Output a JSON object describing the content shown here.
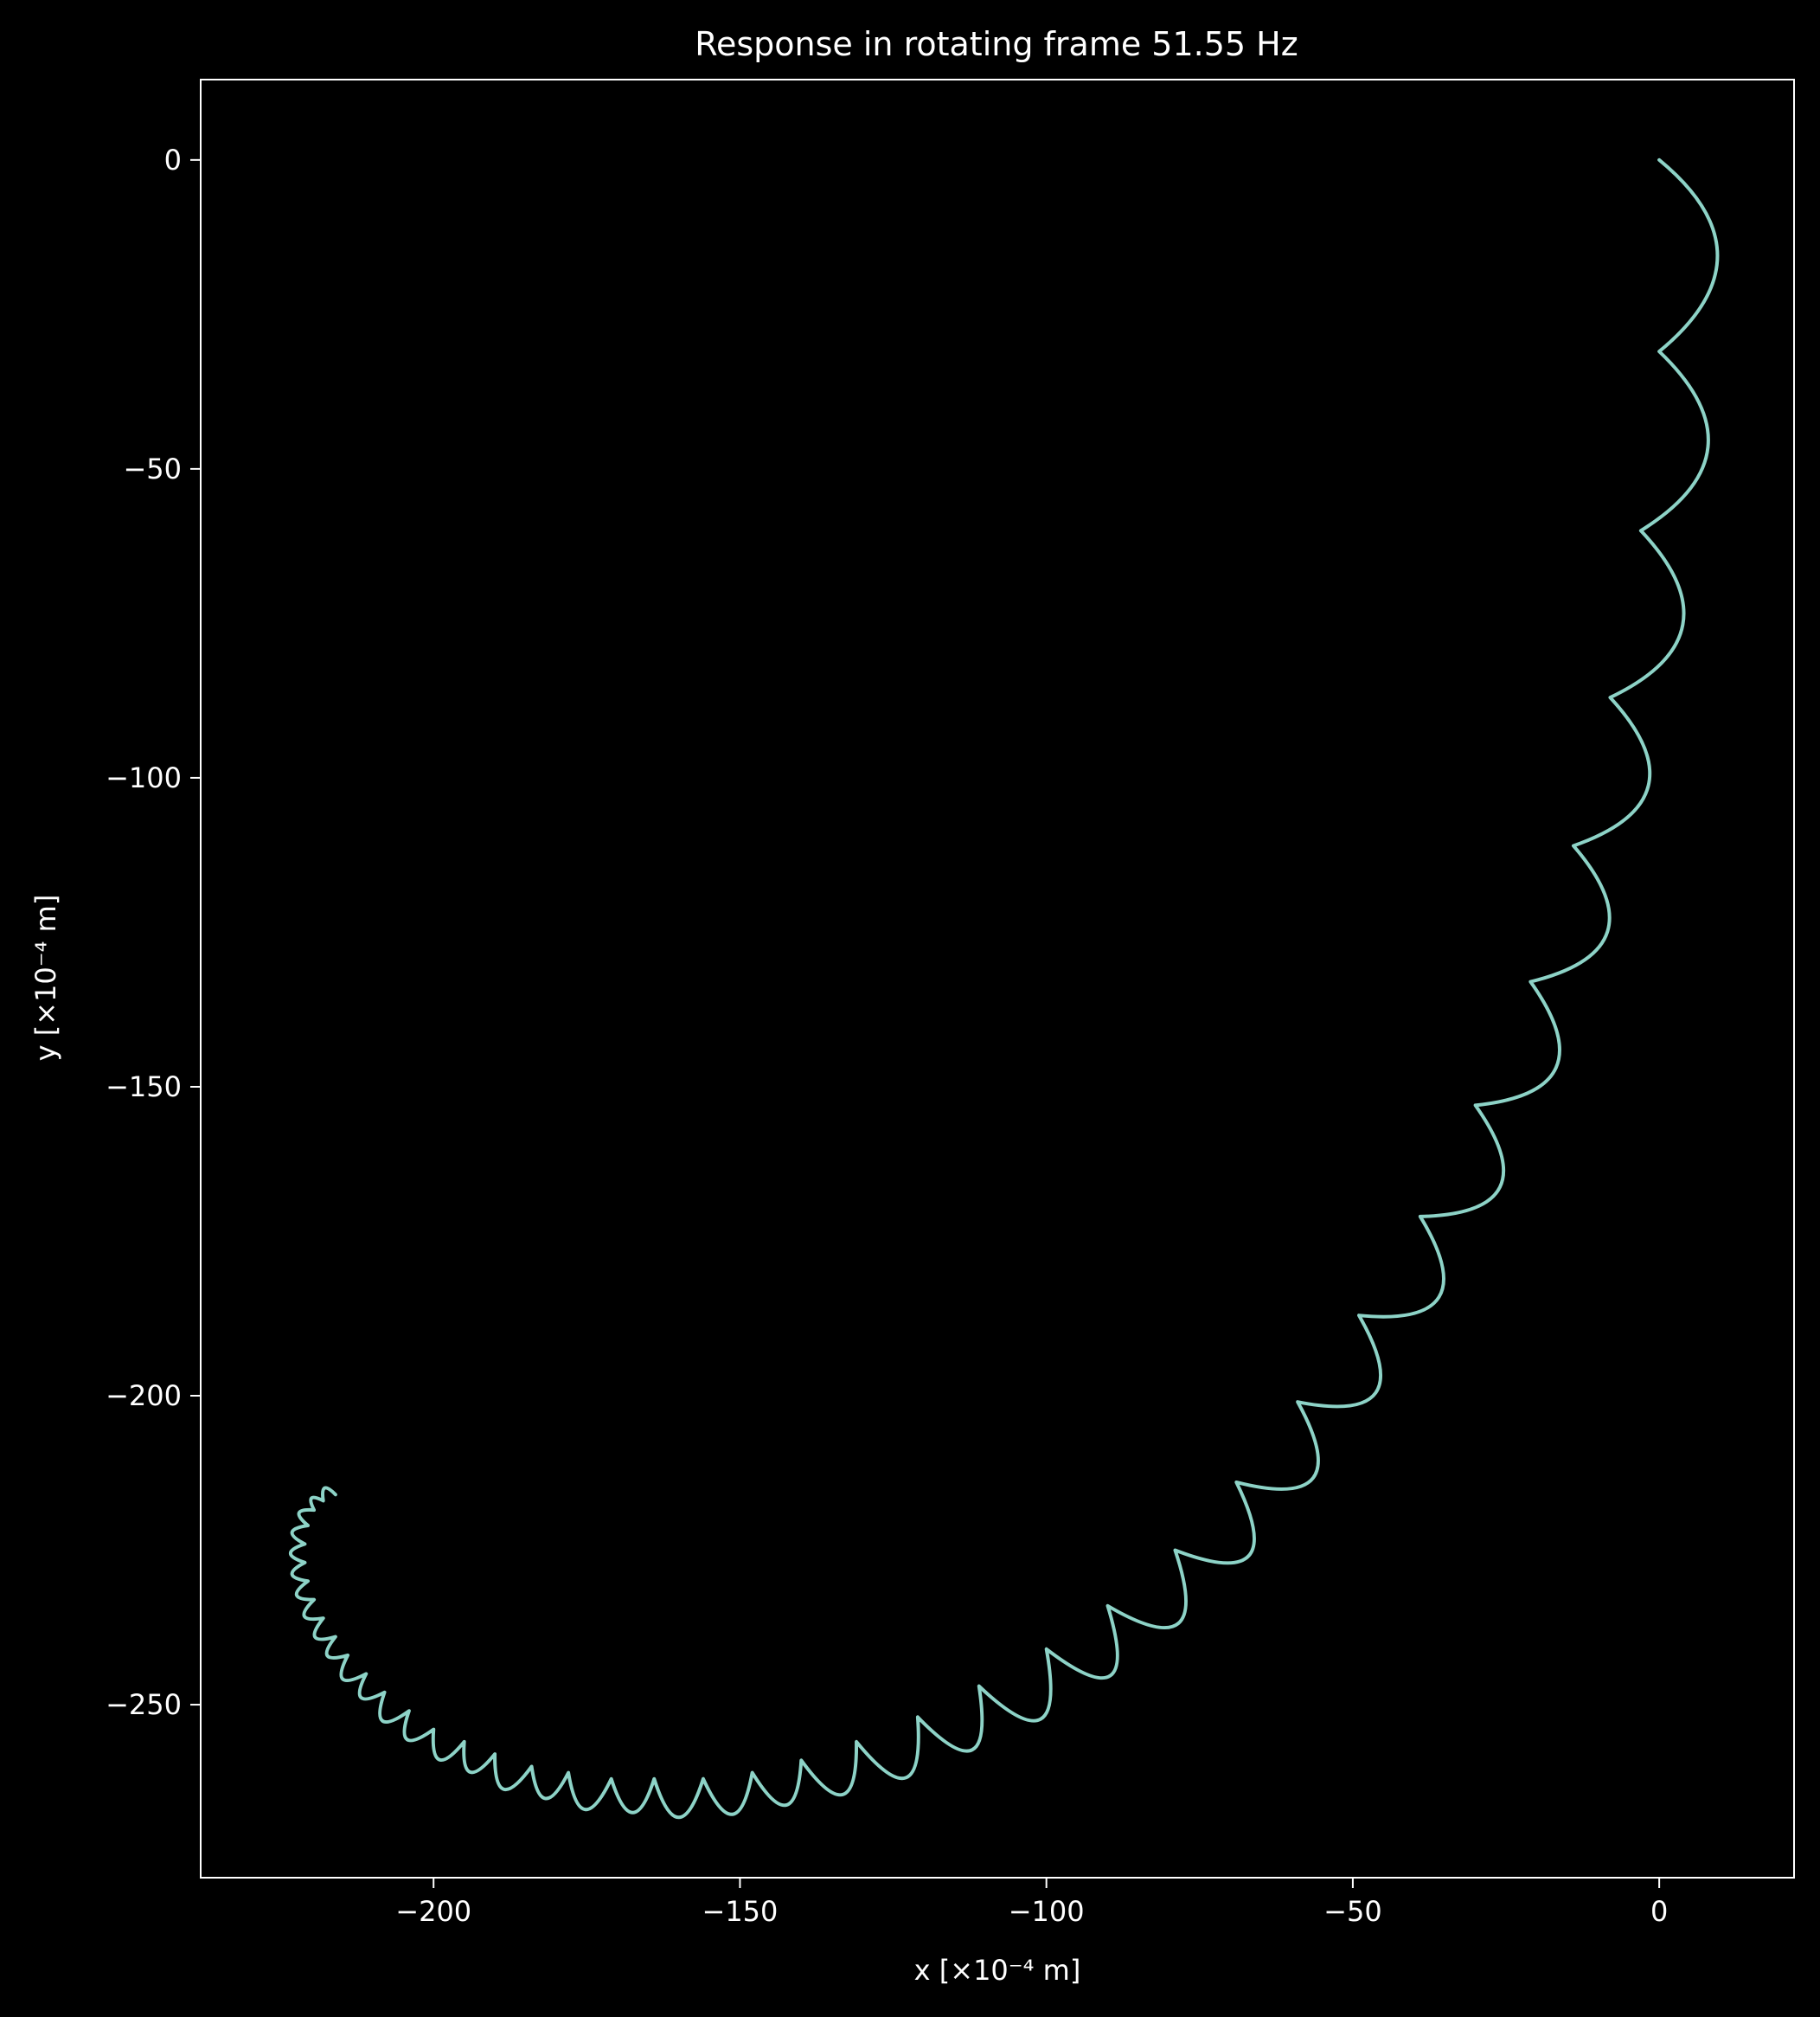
{
  "chart_data": {
    "type": "line",
    "title": "Response in rotating frame 51.55 Hz",
    "xlabel": "x [×10⁻⁴ m]",
    "ylabel": "y [×10⁻⁴ m]",
    "xlim": [
      -238,
      22
    ],
    "ylim": [
      -278,
      13
    ],
    "xticks": [
      -200,
      -150,
      -100,
      -50,
      0
    ],
    "yticks": [
      0,
      -50,
      -100,
      -150,
      -200,
      -250
    ],
    "xtick_labels": [
      "−200",
      "−150",
      "−100",
      "−50",
      "0"
    ],
    "ytick_labels": [
      "0",
      "−50",
      "−100",
      "−150",
      "−200",
      "−250"
    ],
    "grid": false,
    "legend": "none",
    "colors": {
      "background": "#000000",
      "foreground": "#ffffff",
      "line": "#8dd3c7"
    },
    "series": [
      {
        "cusps": [
          [
            0,
            0
          ],
          [
            0,
            -31
          ],
          [
            -3,
            -60
          ],
          [
            -8,
            -87
          ],
          [
            -14,
            -111
          ],
          [
            -21,
            -133
          ],
          [
            -30,
            -153
          ],
          [
            -39,
            -171
          ],
          [
            -49,
            -187
          ],
          [
            -59,
            -201
          ],
          [
            -69,
            -214
          ],
          [
            -79,
            -225
          ],
          [
            -90,
            -234
          ],
          [
            -100,
            -241
          ],
          [
            -111,
            -247
          ],
          [
            -121,
            -252
          ],
          [
            -131,
            -256
          ],
          [
            -140,
            -259
          ],
          [
            -148,
            -261
          ],
          [
            -156,
            -262
          ],
          [
            -164,
            -262
          ],
          [
            -171,
            -262
          ],
          [
            -178,
            -261
          ],
          [
            -184,
            -260
          ],
          [
            -190,
            -258
          ],
          [
            -195,
            -256
          ],
          [
            -200,
            -254
          ],
          [
            -204,
            -251
          ],
          [
            -208,
            -248
          ],
          [
            -211,
            -245
          ],
          [
            -214,
            -242
          ],
          [
            -216,
            -239
          ],
          [
            -218,
            -236
          ],
          [
            -219.5,
            -233
          ],
          [
            -220.5,
            -230
          ],
          [
            -221,
            -227
          ],
          [
            -221,
            -224
          ],
          [
            -220.5,
            -221
          ],
          [
            -219.5,
            -218.5
          ],
          [
            -218,
            -217
          ],
          [
            -216,
            -216
          ]
        ]
      }
    ]
  }
}
